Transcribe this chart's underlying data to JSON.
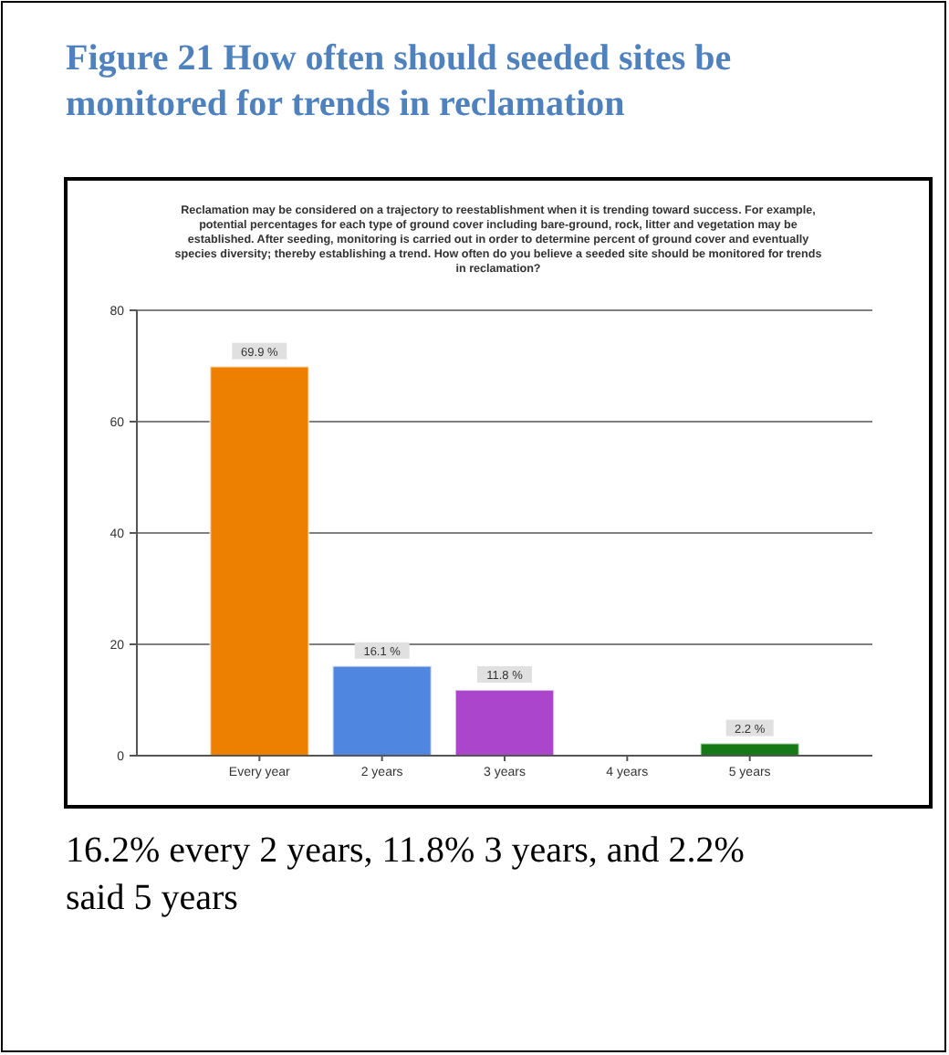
{
  "chart_data": {
    "type": "bar",
    "title": "Figure 21 How often should seeded sites be monitored for trends in reclamation",
    "subtitle": "Reclamation may be considered on a trajectory to reestablishment when it is trending toward success. For example, potential percentages for each type of ground cover including bare-ground, rock, litter and vegetation may be established. After seeding, monitoring is carried out in order to determine percent of ground cover and eventually species diversity; thereby establishing a trend. How often do you believe a seeded site should be monitored for trends in reclamation?",
    "categories": [
      "Every year",
      "2 years",
      "3 years",
      "4 years",
      "5 years"
    ],
    "values": [
      69.9,
      16.1,
      11.8,
      0,
      2.2
    ],
    "value_labels": [
      "69.9 %",
      "16.1 %",
      "11.8 %",
      null,
      "2.2 %"
    ],
    "colors": [
      "#ee8000",
      "#4f86e0",
      "#ab45cc",
      "#cccccc",
      "#157a15"
    ],
    "ylim": [
      0,
      80
    ],
    "yticks": [
      0,
      20,
      40,
      60,
      80
    ],
    "grid": "y",
    "annotations": [
      "16.2% every 2 years, 11.8% 3 years, and 2.2% said 5 years"
    ]
  }
}
